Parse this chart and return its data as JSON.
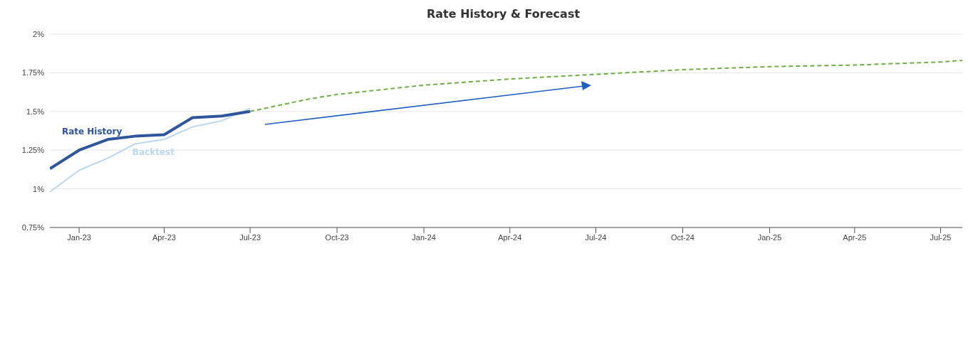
{
  "chart_data": {
    "type": "line",
    "title": "Rate History & Forecast",
    "xlim": [
      "2022-12-01",
      "2025-07-24"
    ],
    "xticks": [
      {
        "value": "2023-01-01",
        "label": "Jan-23"
      },
      {
        "value": "2023-04-01",
        "label": "Apr-23"
      },
      {
        "value": "2023-07-01",
        "label": "Jul-23"
      },
      {
        "value": "2023-10-01",
        "label": "Oct-23"
      },
      {
        "value": "2024-01-01",
        "label": "Jan-24"
      },
      {
        "value": "2024-04-01",
        "label": "Apr-24"
      },
      {
        "value": "2024-07-01",
        "label": "Jul-24"
      },
      {
        "value": "2024-10-01",
        "label": "Oct-24"
      },
      {
        "value": "2025-01-01",
        "label": "Jan-25"
      },
      {
        "value": "2025-04-01",
        "label": "Apr-25"
      },
      {
        "value": "2025-07-01",
        "label": "Jul-25"
      }
    ],
    "ylim": [
      0.75,
      2
    ],
    "yticks": [
      {
        "value": 0.75,
        "label": "0.75%"
      },
      {
        "value": 1,
        "label": "1%"
      },
      {
        "value": 1.25,
        "label": "1.25%"
      },
      {
        "value": 1.5,
        "label": "1.5%"
      },
      {
        "value": 1.75,
        "label": "1.75%"
      },
      {
        "value": 2,
        "label": "2%"
      }
    ],
    "grid": "y",
    "marker": "none",
    "legend": false,
    "series": [
      {
        "name": "Backtest",
        "color": "#bdd7ee",
        "x": [
          "2022-12-01",
          "2023-01-01",
          "2023-02-01",
          "2023-03-01",
          "2023-04-01",
          "2023-05-01",
          "2023-06-01",
          "2023-07-01"
        ],
        "values": [
          0.98,
          1.12,
          1.2,
          1.29,
          1.32,
          1.4,
          1.44,
          1.52
        ]
      },
      {
        "name": "Rate History",
        "color": "#2f559c",
        "x": [
          "2022-12-01",
          "2023-01-01",
          "2023-02-01",
          "2023-03-01",
          "2023-04-01",
          "2023-05-01",
          "2023-06-01",
          "2023-07-01"
        ],
        "values": [
          1.13,
          1.25,
          1.32,
          1.34,
          1.35,
          1.46,
          1.47,
          1.5
        ]
      },
      {
        "color": "#70ad47",
        "line_style": "dashed",
        "x": [
          "2023-07-01",
          "2023-08-01",
          "2023-09-01",
          "2023-10-01",
          "2024-01-01",
          "2024-04-01",
          "2024-07-01",
          "2024-10-01",
          "2025-01-01",
          "2025-04-01",
          "2025-07-01",
          "2025-07-24"
        ],
        "values": [
          1.5,
          1.54,
          1.58,
          1.61,
          1.67,
          1.71,
          1.74,
          1.77,
          1.79,
          1.8,
          1.82,
          1.83
        ]
      }
    ]
  }
}
